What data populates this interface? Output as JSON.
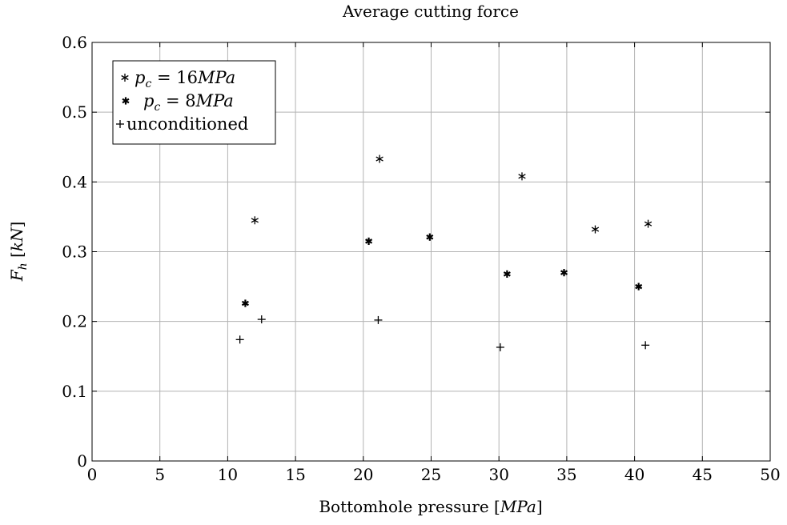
{
  "chart_data": {
    "type": "scatter",
    "title": "Average cutting force",
    "xlabel": "Bottomhole pressure  [MPa]",
    "ylabel": "F_h [kN]",
    "xlim": [
      0,
      50
    ],
    "ylim": [
      0,
      0.6
    ],
    "xticks": [
      0,
      5,
      10,
      15,
      20,
      25,
      30,
      35,
      40,
      45,
      50
    ],
    "yticks": [
      0,
      0.1,
      0.2,
      0.3,
      0.4,
      0.5,
      0.6
    ],
    "xtick_labels": [
      "0",
      "5",
      "10",
      "15",
      "20",
      "25",
      "30",
      "35",
      "40",
      "45",
      "50"
    ],
    "ytick_labels": [
      "0",
      "0.1",
      "0.2",
      "0.3",
      "0.4",
      "0.5",
      "0.6"
    ],
    "grid": true,
    "legend_position": "top-left",
    "series": [
      {
        "name": "p_c = 16MPa",
        "marker": "asterisk",
        "points": [
          {
            "x": 12.0,
            "y": 0.345
          },
          {
            "x": 21.2,
            "y": 0.433
          },
          {
            "x": 31.7,
            "y": 0.408
          },
          {
            "x": 37.1,
            "y": 0.332
          },
          {
            "x": 41.0,
            "y": 0.34
          }
        ]
      },
      {
        "name": "p_c = 8MPa",
        "marker": "star",
        "points": [
          {
            "x": 11.3,
            "y": 0.226
          },
          {
            "x": 20.4,
            "y": 0.315
          },
          {
            "x": 24.9,
            "y": 0.321
          },
          {
            "x": 30.6,
            "y": 0.268
          },
          {
            "x": 34.8,
            "y": 0.27
          },
          {
            "x": 40.3,
            "y": 0.25
          }
        ]
      },
      {
        "name": "unconditioned",
        "marker": "plus",
        "points": [
          {
            "x": 10.9,
            "y": 0.174
          },
          {
            "x": 12.5,
            "y": 0.203
          },
          {
            "x": 21.1,
            "y": 0.202
          },
          {
            "x": 30.1,
            "y": 0.163
          },
          {
            "x": 40.8,
            "y": 0.166
          }
        ]
      }
    ]
  }
}
